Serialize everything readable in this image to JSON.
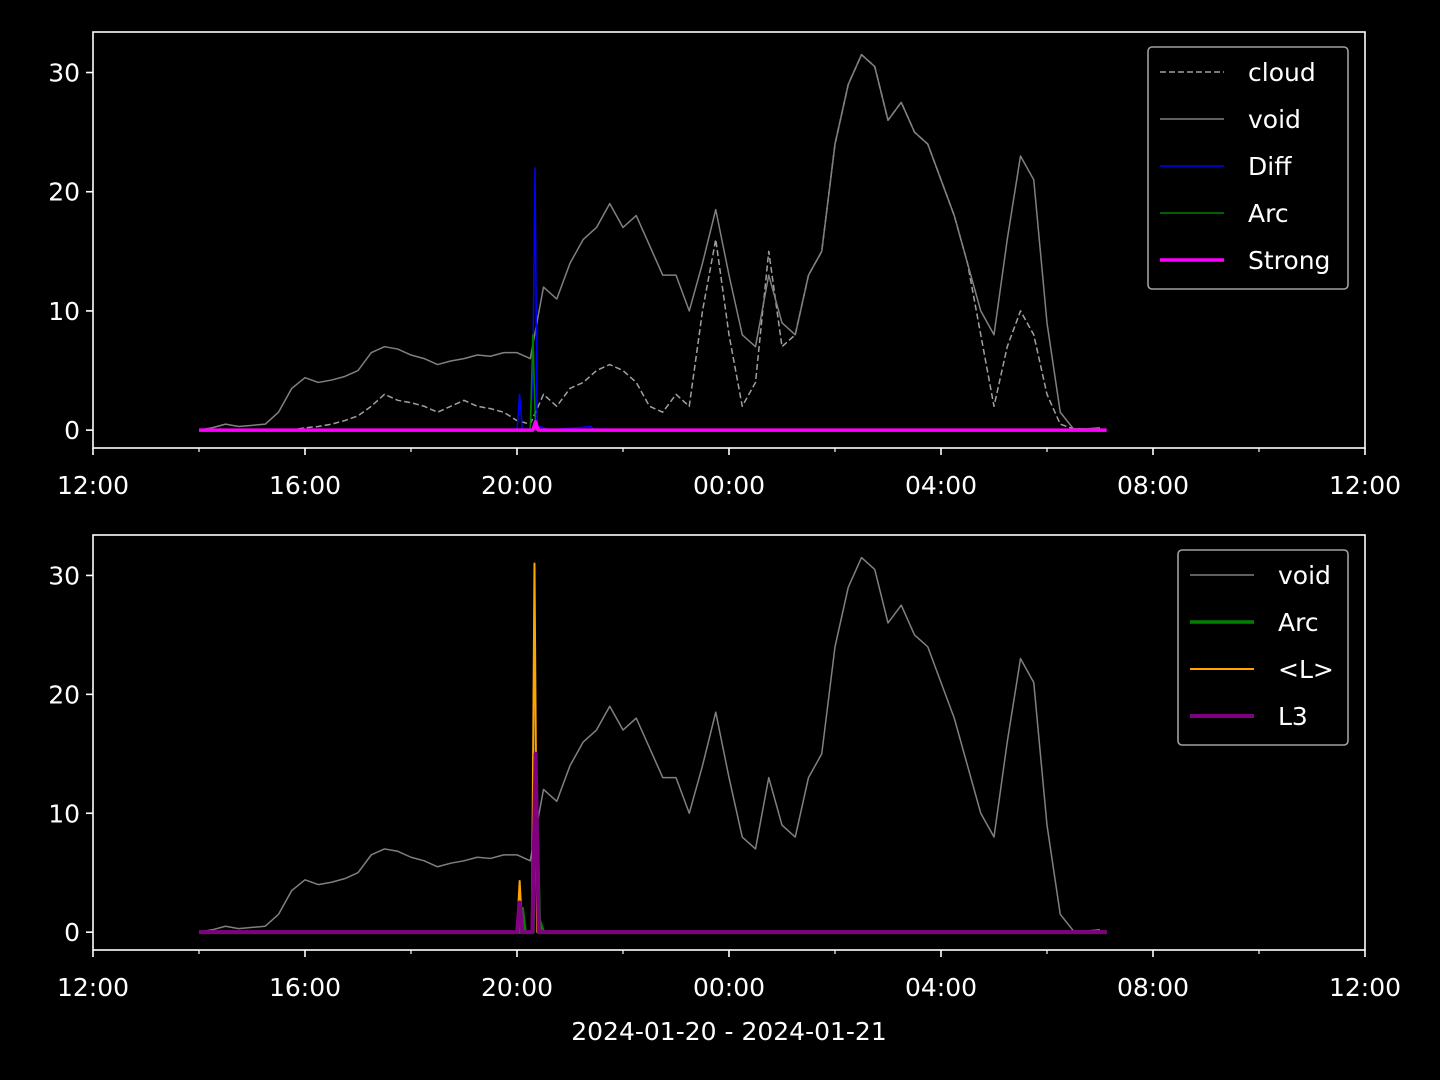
{
  "chart_data": [
    {
      "type": "line",
      "legend": "upper right",
      "x": [
        2,
        2.25,
        2.5,
        2.75,
        3,
        3.25,
        3.5,
        3.75,
        4,
        4.25,
        4.5,
        4.75,
        5,
        5.25,
        5.5,
        5.75,
        6,
        6.25,
        6.5,
        6.75,
        7,
        7.25,
        7.5,
        7.75,
        8,
        8.25,
        8.5,
        8.75,
        9,
        9.25,
        9.5,
        9.75,
        10,
        10.25,
        10.5,
        10.75,
        11,
        11.25,
        11.5,
        11.75,
        12,
        12.25,
        12.5,
        12.75,
        13,
        13.25,
        13.5,
        13.75,
        14,
        14.25,
        14.5,
        14.75,
        15,
        15.25,
        15.5,
        15.75,
        16,
        16.25,
        16.5,
        16.75,
        17,
        17.25,
        17.5,
        17.75,
        18,
        18.25,
        18.5,
        18.75,
        19
      ],
      "xlim": [
        0,
        24
      ],
      "xticks": [
        {
          "value": 0,
          "label": "12:00"
        },
        {
          "value": 4,
          "label": "16:00"
        },
        {
          "value": 8,
          "label": "20:00"
        },
        {
          "value": 12,
          "label": "00:00"
        },
        {
          "value": 16,
          "label": "04:00"
        },
        {
          "value": 20,
          "label": "08:00"
        },
        {
          "value": 24,
          "label": "12:00"
        }
      ],
      "xminorticks": [
        2,
        6,
        10,
        14,
        18,
        22
      ],
      "ylim": [
        -1.5,
        33.4
      ],
      "yticks": [
        0,
        10,
        20,
        30
      ],
      "series": [
        {
          "name": "cloud",
          "color": "#a0a0a0",
          "linestyle": "dashed",
          "linewidth": 1.5,
          "values": [
            0,
            0,
            0,
            0,
            0,
            0,
            0,
            0,
            0.2,
            0.3,
            0.5,
            0.8,
            1.2,
            2,
            3,
            2.5,
            2.3,
            2,
            1.5,
            2,
            2.5,
            2,
            1.8,
            1.5,
            0.8,
            0.5,
            3,
            2,
            3.5,
            4,
            5,
            5.5,
            5,
            4,
            2,
            1.5,
            3,
            2,
            10,
            16,
            8,
            2,
            4,
            15,
            7,
            8,
            13,
            15,
            24,
            29,
            31.5,
            30.5,
            26,
            27.5,
            25,
            24,
            21,
            18,
            14,
            8,
            2,
            7,
            10,
            8,
            3,
            0.5,
            0.1,
            0.1,
            0.1
          ]
        },
        {
          "name": "void",
          "color": "#808080",
          "linestyle": "solid",
          "linewidth": 1.5,
          "values": [
            0,
            0.2,
            0.5,
            0.3,
            0.4,
            0.5,
            1.5,
            3.5,
            4.4,
            4,
            4.2,
            4.5,
            5,
            6.5,
            7,
            6.8,
            6.3,
            6,
            5.5,
            5.8,
            6,
            6.3,
            6.2,
            6.5,
            6.5,
            6,
            12,
            11,
            14,
            16,
            17,
            19,
            17,
            18,
            15.5,
            13,
            13,
            10,
            14,
            18.5,
            13,
            8,
            7,
            13,
            9,
            8,
            13,
            15,
            24,
            29,
            31.5,
            30.5,
            26,
            27.5,
            25,
            24,
            21,
            18,
            14,
            10,
            8,
            16,
            23,
            21,
            9,
            1.5,
            0.1,
            0.1,
            0.2
          ]
        },
        {
          "name": "Diff",
          "color": "#0000ff",
          "linestyle": "solid",
          "linewidth": 1.5,
          "x": [
            2,
            8,
            8.05,
            8.1,
            8.25,
            8.3,
            8.34,
            8.38,
            8.45,
            8.6,
            9.4,
            9.45,
            19.125
          ],
          "values": [
            0,
            0,
            3,
            0,
            0,
            5,
            22,
            0,
            0.3,
            0,
            0.3,
            0,
            0
          ]
        },
        {
          "name": "Arc",
          "color": "#008000",
          "linestyle": "solid",
          "linewidth": 1.5,
          "x": [
            2,
            8.25,
            8.3,
            8.35,
            8.4,
            19.125
          ],
          "values": [
            0,
            0,
            8,
            0,
            0,
            0
          ]
        },
        {
          "name": "Strong",
          "color": "#ff00ff",
          "linestyle": "solid",
          "linewidth": 3.5,
          "x": [
            2,
            8.3,
            8.35,
            8.4,
            19.125
          ],
          "values": [
            0,
            0,
            0.7,
            0,
            0
          ]
        }
      ]
    },
    {
      "type": "line",
      "legend": "upper right",
      "xlabel": "2024-01-20 - 2024-01-21",
      "x": [
        2,
        2.25,
        2.5,
        2.75,
        3,
        3.25,
        3.5,
        3.75,
        4,
        4.25,
        4.5,
        4.75,
        5,
        5.25,
        5.5,
        5.75,
        6,
        6.25,
        6.5,
        6.75,
        7,
        7.25,
        7.5,
        7.75,
        8,
        8.25,
        8.5,
        8.75,
        9,
        9.25,
        9.5,
        9.75,
        10,
        10.25,
        10.5,
        10.75,
        11,
        11.25,
        11.5,
        11.75,
        12,
        12.25,
        12.5,
        12.75,
        13,
        13.25,
        13.5,
        13.75,
        14,
        14.25,
        14.5,
        14.75,
        15,
        15.25,
        15.5,
        15.75,
        16,
        16.25,
        16.5,
        16.75,
        17,
        17.25,
        17.5,
        17.75,
        18,
        18.25,
        18.5,
        18.75,
        19
      ],
      "xlim": [
        0,
        24
      ],
      "xticks": [
        {
          "value": 0,
          "label": "12:00"
        },
        {
          "value": 4,
          "label": "16:00"
        },
        {
          "value": 8,
          "label": "20:00"
        },
        {
          "value": 12,
          "label": "00:00"
        },
        {
          "value": 16,
          "label": "04:00"
        },
        {
          "value": 20,
          "label": "08:00"
        },
        {
          "value": 24,
          "label": "12:00"
        }
      ],
      "xminorticks": [
        2,
        6,
        10,
        14,
        18,
        22
      ],
      "ylim": [
        -1.5,
        33.4
      ],
      "yticks": [
        0,
        10,
        20,
        30
      ],
      "series": [
        {
          "name": "void",
          "color": "#808080",
          "linestyle": "solid",
          "linewidth": 1.5,
          "values": [
            0,
            0.2,
            0.5,
            0.3,
            0.4,
            0.5,
            1.5,
            3.5,
            4.4,
            4,
            4.2,
            4.5,
            5,
            6.5,
            7,
            6.8,
            6.3,
            6,
            5.5,
            5.8,
            6,
            6.3,
            6.2,
            6.5,
            6.5,
            6,
            12,
            11,
            14,
            16,
            17,
            19,
            17,
            18,
            15.5,
            13,
            13,
            10,
            14,
            18.5,
            13,
            8,
            7,
            13,
            9,
            8,
            13,
            15,
            24,
            29,
            31.5,
            30.5,
            26,
            27.5,
            25,
            24,
            21,
            18,
            14,
            10,
            8,
            16,
            23,
            21,
            9,
            1.5,
            0.1,
            0.1,
            0.2
          ]
        },
        {
          "name": "Arc",
          "color": "#008000",
          "linestyle": "solid",
          "linewidth": 3.5,
          "x": [
            2,
            8.05,
            8.1,
            8.15,
            8.3,
            8.35,
            8.42,
            8.5,
            19.125
          ],
          "values": [
            0,
            0,
            2,
            0,
            0,
            14,
            1,
            0,
            0
          ]
        },
        {
          "name": "<L>",
          "color": "#ffa500",
          "linestyle": "solid",
          "linewidth": 2,
          "x": [
            2,
            8,
            8.05,
            8.1,
            8.28,
            8.33,
            8.38,
            19.125
          ],
          "values": [
            0,
            0,
            4.3,
            0,
            0,
            31,
            0,
            0
          ]
        },
        {
          "name": "L3",
          "color": "#800080",
          "linestyle": "solid",
          "linewidth": 4,
          "x": [
            2,
            8,
            8.05,
            8.1,
            8.29,
            8.35,
            8.41,
            19.125
          ],
          "values": [
            0,
            0,
            2.5,
            0,
            0,
            15,
            0,
            0
          ]
        }
      ]
    }
  ]
}
